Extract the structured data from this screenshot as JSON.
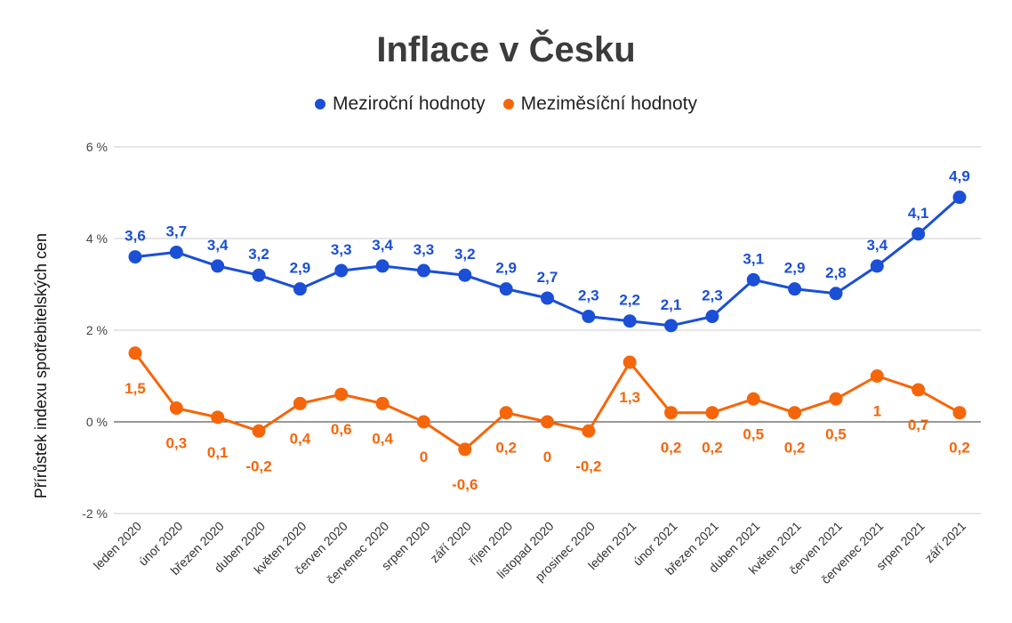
{
  "chart_data": {
    "type": "line",
    "title": "Inflace v Česku",
    "ylabel": "Přírůstek indexu spotřebitelských cen",
    "xlabel": "",
    "ylim": [
      -2,
      6
    ],
    "yticks": [
      "-2 %",
      "0 %",
      "2 %",
      "4 %",
      "6 %"
    ],
    "grid": true,
    "legend_position": "top",
    "categories": [
      "leden 2020",
      "únor 2020",
      "březen 2020",
      "duben 2020",
      "květen 2020",
      "červen 2020",
      "červenec 2020",
      "srpen 2020",
      "září 2020",
      "říjen 2020",
      "listopad 2020",
      "prosinec 2020",
      "leden 2021",
      "únor 2021",
      "březen 2021",
      "duben 2021",
      "květen 2021",
      "červen 2021",
      "červenec 2021",
      "srpen 2021",
      "září 2021"
    ],
    "series": [
      {
        "name": "Meziroční hodnoty",
        "color": "#1a4fd6",
        "values": [
          3.6,
          3.7,
          3.4,
          3.2,
          2.9,
          3.3,
          3.4,
          3.3,
          3.2,
          2.9,
          2.7,
          2.3,
          2.2,
          2.1,
          2.3,
          3.1,
          2.9,
          2.8,
          3.4,
          4.1,
          4.9
        ],
        "labels": [
          "3,6",
          "3,7",
          "3,4",
          "3,2",
          "2,9",
          "3,3",
          "3,4",
          "3,3",
          "3,2",
          "2,9",
          "2,7",
          "2,3",
          "2,2",
          "2,1",
          "2,3",
          "3,1",
          "2,9",
          "2,8",
          "3,4",
          "4,1",
          "4,9"
        ]
      },
      {
        "name": "Meziměsíční hodnoty",
        "color": "#f5660a",
        "values": [
          1.5,
          0.3,
          0.1,
          -0.2,
          0.4,
          0.6,
          0.4,
          0,
          -0.6,
          0.2,
          0,
          -0.2,
          1.3,
          0.2,
          0.2,
          0.5,
          0.2,
          0.5,
          1,
          0.7,
          0.2
        ],
        "labels": [
          "1,5",
          "0,3",
          "0,1",
          "-0,2",
          "0,4",
          "0,6",
          "0,4",
          "0",
          "-0,6",
          "0,2",
          "0",
          "-0,2",
          "1,3",
          "0,2",
          "0,2",
          "0,5",
          "0,2",
          "0,5",
          "1",
          "0,7",
          "0,2"
        ]
      }
    ]
  }
}
